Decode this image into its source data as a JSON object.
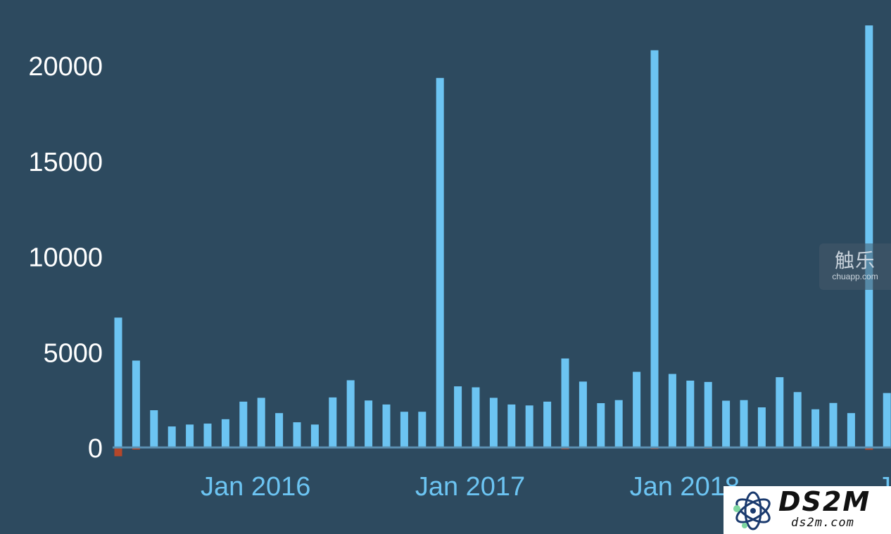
{
  "chart_data": {
    "type": "bar",
    "yticks": [
      "0",
      "5000",
      "10000",
      "15000",
      "20000"
    ],
    "ylim": [
      0,
      22400
    ],
    "xticks": [
      {
        "label": "Jan 2016",
        "index": 8
      },
      {
        "label": "Jan 2017",
        "index": 20
      },
      {
        "label": "Jan 2018",
        "index": 32
      },
      {
        "label": "Jan",
        "index": 44
      }
    ],
    "series": [
      {
        "values": [
          6800,
          4550,
          1950,
          1100,
          1200,
          1250,
          1480,
          2400,
          2600,
          1800,
          1320,
          1200,
          2620,
          3520,
          2460,
          2250,
          1870,
          1870,
          19350,
          3200,
          3150,
          2600,
          2250,
          2200,
          2400,
          4660,
          3450,
          2320,
          2480,
          3960,
          20800,
          3850,
          3500,
          3430,
          2450,
          2480,
          2100,
          3680,
          2900,
          2000,
          2330,
          1800,
          22100,
          2850
        ],
        "color": "#6cc4f2"
      },
      {
        "values": [
          -460,
          -110,
          0,
          0,
          0,
          0,
          0,
          0,
          0,
          0,
          0,
          0,
          0,
          0,
          0,
          0,
          0,
          0,
          -60,
          0,
          0,
          0,
          0,
          0,
          0,
          -90,
          0,
          0,
          0,
          -50,
          -80,
          -50,
          -40,
          -70,
          0,
          0,
          0,
          -60,
          0,
          0,
          0,
          0,
          -120,
          -60
        ],
        "color": "#b5472a"
      }
    ],
    "gridlines": false,
    "legend": "none"
  },
  "watermarks": {
    "chuapp_cn": "触乐",
    "chuapp_en": "chuapp.com",
    "ds2m_name": "DS2M",
    "ds2m_site": "ds2m.com"
  }
}
